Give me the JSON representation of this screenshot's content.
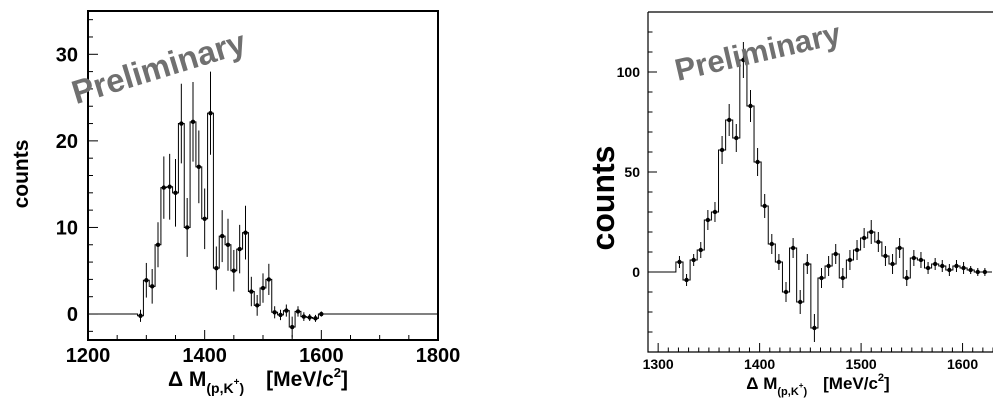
{
  "chart_data": [
    {
      "type": "histogram",
      "xlim": [
        1200,
        1800
      ],
      "ylim": [
        -3,
        35
      ],
      "xticks": [
        "1200",
        "1400",
        "1600",
        "1800"
      ],
      "yticks": [
        "0",
        "10",
        "20",
        "30"
      ],
      "xlabel": {
        "main": "Δ M",
        "sub": "(p,K",
        "subsup": "+",
        "subclose": ")",
        "unit": "[MeV/c",
        "unitsup": "2",
        "unitclose": "]"
      },
      "ylabel": "counts",
      "watermark": "Preliminary",
      "bin_width": 10,
      "x": [
        1290,
        1300,
        1310,
        1320,
        1330,
        1340,
        1350,
        1360,
        1370,
        1380,
        1390,
        1400,
        1410,
        1420,
        1430,
        1440,
        1450,
        1460,
        1470,
        1480,
        1490,
        1500,
        1510,
        1520,
        1530,
        1540,
        1550,
        1560,
        1570,
        1580,
        1590,
        1600
      ],
      "y": [
        -0.2,
        3.9,
        3.2,
        8.0,
        14.6,
        14.7,
        14.0,
        22.0,
        10.0,
        22.2,
        17.0,
        11.0,
        23.2,
        5.3,
        9.0,
        8.0,
        5.0,
        7.5,
        9.4,
        2.6,
        1.0,
        3.0,
        4.0,
        0.2,
        -0.1,
        0.4,
        -1.5,
        0.3,
        -0.3,
        -0.4,
        -0.5,
        0.0
      ],
      "yerr": [
        0.7,
        2.0,
        2.0,
        2.6,
        3.6,
        3.8,
        3.9,
        4.6,
        3.4,
        4.6,
        4.2,
        3.5,
        4.8,
        2.5,
        3.0,
        3.0,
        2.4,
        2.8,
        3.1,
        1.7,
        1.2,
        1.7,
        1.8,
        0.7,
        0.6,
        0.7,
        1.2,
        0.6,
        0.5,
        0.4,
        0.4,
        0.3
      ],
      "baseline": 0
    },
    {
      "type": "histogram",
      "xlim": [
        1290,
        1630
      ],
      "ylim": [
        -40,
        130
      ],
      "xticks": [
        "1300",
        "1400",
        "1500",
        "1600"
      ],
      "yticks": [
        "0",
        "50",
        "100"
      ],
      "xlabel": {
        "main": "Δ M",
        "sub": "(p,K",
        "subsup": "+",
        "subclose": ")",
        "unit": "[MeV/c",
        "unitsup": "2",
        "unitclose": "]"
      },
      "ylabel": "counts",
      "watermark": "Preliminary",
      "bin_width": 7,
      "x": [
        1321,
        1328,
        1335,
        1342,
        1349,
        1356,
        1363,
        1370,
        1377,
        1384,
        1391,
        1398,
        1405,
        1412,
        1419,
        1426,
        1433,
        1440,
        1447,
        1454,
        1461,
        1468,
        1475,
        1482,
        1489,
        1496,
        1503,
        1510,
        1517,
        1524,
        1531,
        1538,
        1545,
        1552,
        1559,
        1566,
        1573,
        1580,
        1587,
        1594,
        1601,
        1608,
        1615,
        1622
      ],
      "y": [
        5,
        -4,
        6,
        11,
        26,
        30,
        61,
        76,
        67,
        106,
        83,
        55,
        33,
        14,
        5,
        -10,
        12,
        -15,
        4,
        -28,
        -3,
        3,
        9,
        -3,
        6,
        11,
        17,
        20,
        15,
        8,
        4,
        12,
        -3,
        7,
        6,
        2,
        4,
        3,
        1,
        3,
        2,
        1,
        0,
        0
      ],
      "yerr": [
        3,
        3,
        3,
        4,
        5,
        5,
        7,
        8,
        7,
        9,
        8,
        7,
        6,
        5,
        4,
        5,
        5,
        6,
        5,
        7,
        5,
        5,
        5,
        5,
        5,
        5,
        5,
        6,
        5,
        5,
        5,
        5,
        4,
        4,
        4,
        3,
        3,
        3,
        3,
        3,
        3,
        2,
        2,
        2
      ],
      "baseline": 0
    }
  ]
}
